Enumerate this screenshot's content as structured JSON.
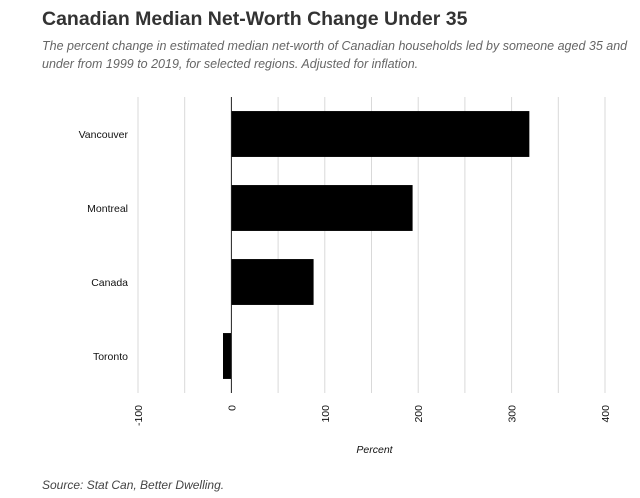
{
  "header": {
    "title": "Canadian Median Net-Worth Change Under 35",
    "subtitle": "The percent change in estimated median net-worth of Canadian households led by someone aged 35 and under from 1999 to 2019, for selected regions. Adjusted for inflation."
  },
  "footer": {
    "source": "Source: Stat Can, Better Dwelling."
  },
  "chart_data": {
    "type": "bar",
    "orientation": "horizontal",
    "categories": [
      "Vancouver",
      "Montreal",
      "Canada",
      "Toronto"
    ],
    "values": [
      319,
      194,
      88,
      -9
    ],
    "xlabel": "Percent",
    "ylabel": "",
    "xlim": [
      -100,
      400
    ],
    "xticks": [
      -100,
      0,
      100,
      200,
      300,
      400
    ],
    "bar_color": "#000000",
    "grid": true
  }
}
